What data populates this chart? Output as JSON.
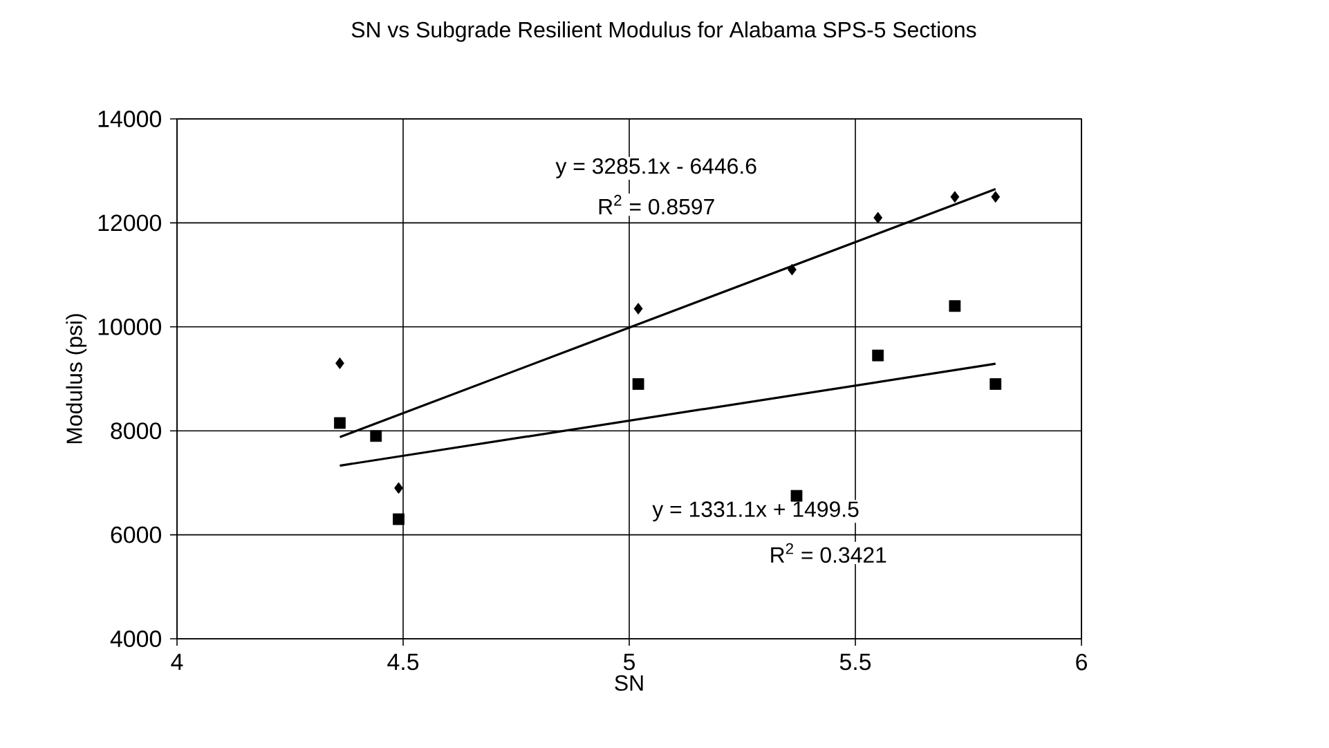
{
  "chart_data": {
    "type": "scatter",
    "title": "SN vs Subgrade Resilient Modulus for Alabama SPS-5 Sections",
    "xlabel": "SN",
    "ylabel": "Modulus (psi)",
    "xlim": [
      4,
      6
    ],
    "xticks": [
      4,
      4.5,
      5,
      5.5,
      6
    ],
    "ylim": [
      4000,
      14000
    ],
    "yticks": [
      4000,
      6000,
      8000,
      10000,
      12000,
      14000
    ],
    "grid": true,
    "series": [
      {
        "marker": "diamond",
        "color": "#000000",
        "x": [
          4.36,
          4.49,
          5.02,
          5.36,
          5.55,
          5.72,
          5.81
        ],
        "values": [
          9300,
          6900,
          10350,
          11100,
          12100,
          12500,
          12500
        ]
      },
      {
        "marker": "square",
        "color": "#000000",
        "x": [
          4.36,
          4.44,
          4.49,
          5.02,
          5.37,
          5.55,
          5.72,
          5.81
        ],
        "values": [
          8150,
          7900,
          6300,
          8900,
          6750,
          9450,
          10400,
          8900
        ]
      },
      {
        "type": "line",
        "marker": "none",
        "line_style": "solid",
        "color": "#000000",
        "x": [
          4.36,
          5.81
        ],
        "values": [
          7880,
          12650
        ]
      },
      {
        "type": "line",
        "marker": "none",
        "line_style": "solid",
        "color": "#000000",
        "x": [
          4.36,
          5.81
        ],
        "values": [
          7330,
          9290
        ]
      }
    ],
    "annotations": [
      "y = 3285.1x - 6446.6",
      "R$^{2}$ = 0.8597",
      "y = 1331.1x + 1499.5",
      "R$^{2}$ = 0.3421"
    ]
  }
}
